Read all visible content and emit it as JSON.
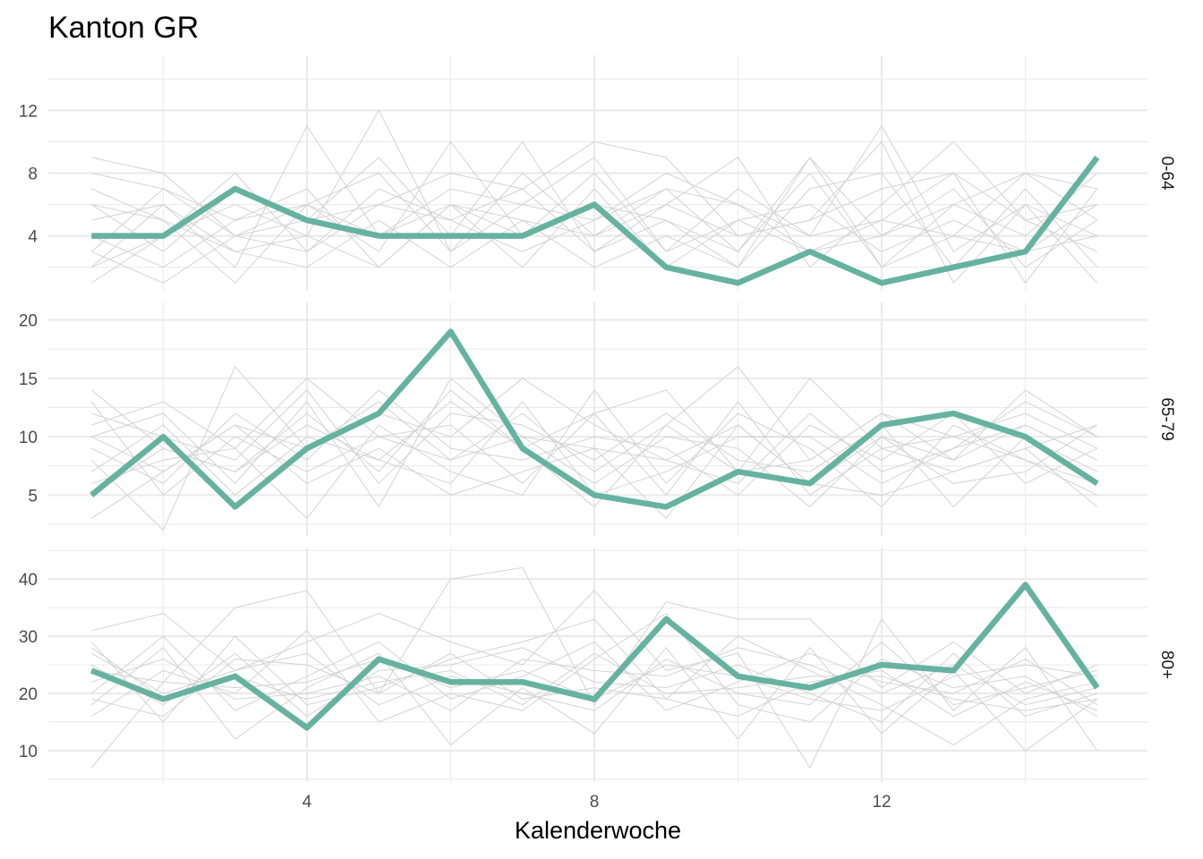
{
  "chart_data": {
    "type": "line",
    "title": "Kanton GR",
    "xlabel": "Kalenderwoche",
    "ylabel": "",
    "x": [
      1,
      2,
      3,
      4,
      5,
      6,
      7,
      8,
      9,
      10,
      11,
      12,
      13,
      14,
      15
    ],
    "xlim": [
      0.4,
      15.7
    ],
    "xticks": [
      4,
      8,
      12
    ],
    "grid": true,
    "legend": "none",
    "colors": {
      "highlight": "#66b2a0",
      "background_lines": "#d3d3d3",
      "grid": "#ebebeb"
    },
    "panels": [
      {
        "label": "0-64",
        "ylim": [
          0.5,
          15.5
        ],
        "yticks": [
          4,
          8,
          12
        ],
        "highlight": [
          4,
          4,
          7,
          5,
          4,
          4,
          4,
          6,
          2,
          1,
          3,
          1,
          2,
          3,
          9
        ],
        "background_series": [
          [
            9,
            8,
            4,
            3,
            6,
            5,
            7,
            10,
            9,
            4,
            5,
            7,
            8,
            5,
            6
          ],
          [
            8,
            7,
            5,
            6,
            4,
            6,
            5,
            4,
            7,
            6,
            3,
            5,
            4,
            8,
            7
          ],
          [
            6,
            3,
            7,
            5,
            9,
            4,
            10,
            3,
            5,
            2,
            9,
            4,
            7,
            2,
            5
          ],
          [
            5,
            6,
            2,
            11,
            4,
            7,
            6,
            9,
            3,
            7,
            4,
            11,
            3,
            6,
            4
          ],
          [
            3,
            7,
            4,
            6,
            3,
            10,
            4,
            6,
            5,
            3,
            8,
            2,
            6,
            4,
            8
          ],
          [
            2,
            4,
            6,
            4,
            12,
            3,
            8,
            4,
            6,
            9,
            2,
            6,
            10,
            5,
            3
          ],
          [
            4,
            2,
            5,
            7,
            2,
            6,
            2,
            7,
            2,
            5,
            6,
            3,
            5,
            3,
            6
          ],
          [
            7,
            5,
            3,
            2,
            5,
            2,
            5,
            2,
            4,
            2,
            7,
            8,
            2,
            7,
            2
          ],
          [
            1,
            4,
            8,
            3,
            7,
            5,
            3,
            5,
            8,
            6,
            4,
            5,
            8,
            1,
            7
          ],
          [
            3,
            1,
            4,
            5,
            6,
            8,
            7,
            3,
            6,
            4,
            5,
            10,
            1,
            6,
            1
          ],
          [
            2,
            6,
            3,
            4,
            2,
            6,
            4,
            8,
            3,
            5,
            3,
            4,
            6,
            8,
            5
          ],
          [
            6,
            5,
            1,
            6,
            8,
            3,
            6,
            5,
            7,
            3,
            9,
            2,
            4,
            3,
            4
          ]
        ]
      },
      {
        "label": "65-79",
        "ylim": [
          1.5,
          21.5
        ],
        "yticks": [
          5,
          10,
          15,
          20
        ],
        "highlight": [
          5,
          10,
          4,
          9,
          12,
          19,
          9,
          5,
          4,
          7,
          6,
          11,
          12,
          10,
          6
        ],
        "background_series": [
          [
            14,
            9,
            7,
            11,
            8,
            13,
            9,
            12,
            14,
            7,
            15,
            9,
            10,
            12,
            9
          ],
          [
            11,
            13,
            9,
            15,
            10,
            8,
            12,
            7,
            11,
            16,
            8,
            12,
            8,
            14,
            10
          ],
          [
            3,
            7,
            11,
            6,
            9,
            5,
            7,
            9,
            3,
            11,
            6,
            5,
            7,
            9,
            4
          ],
          [
            8,
            2,
            16,
            9,
            12,
            10,
            15,
            11,
            8,
            6,
            12,
            7,
            9,
            11,
            8
          ],
          [
            10,
            12,
            6,
            13,
            4,
            15,
            10,
            6,
            10,
            9,
            4,
            10,
            6,
            7,
            11
          ],
          [
            6,
            8,
            9,
            3,
            11,
            7,
            5,
            14,
            6,
            12,
            9,
            4,
            11,
            8,
            6
          ],
          [
            9,
            6,
            12,
            8,
            14,
            9,
            8,
            10,
            9,
            5,
            11,
            8,
            12,
            6,
            9
          ],
          [
            12,
            10,
            8,
            14,
            6,
            12,
            11,
            8,
            12,
            8,
            7,
            11,
            4,
            10,
            7
          ],
          [
            7,
            11,
            5,
            10,
            8,
            6,
            13,
            5,
            7,
            10,
            10,
            6,
            9,
            13,
            10
          ],
          [
            13,
            5,
            10,
            7,
            10,
            11,
            6,
            12,
            5,
            13,
            5,
            9,
            7,
            9,
            11
          ],
          [
            5,
            9,
            7,
            12,
            7,
            14,
            9,
            4,
            11,
            7,
            8,
            12,
            10,
            8,
            5
          ],
          [
            10,
            7,
            11,
            9,
            13,
            8,
            10,
            9,
            8,
            11,
            6,
            10,
            8,
            11,
            8
          ]
        ]
      },
      {
        "label": "80+",
        "ylim": [
          4.5,
          45.5
        ],
        "yticks": [
          10,
          20,
          30,
          40
        ],
        "highlight": [
          24,
          19,
          23,
          14,
          26,
          22,
          22,
          19,
          33,
          23,
          21,
          25,
          24,
          39,
          21
        ],
        "background_series": [
          [
            7,
            22,
            35,
            38,
            20,
            40,
            42,
            18,
            36,
            33,
            33,
            21,
            29,
            20,
            25
          ],
          [
            31,
            34,
            24,
            29,
            34,
            29,
            25,
            38,
            24,
            27,
            7,
            33,
            17,
            28,
            10
          ],
          [
            18,
            28,
            12,
            21,
            27,
            11,
            21,
            13,
            28,
            12,
            28,
            13,
            24,
            10,
            19
          ],
          [
            29,
            15,
            30,
            18,
            21,
            26,
            29,
            33,
            19,
            30,
            24,
            18,
            11,
            19,
            22
          ],
          [
            16,
            24,
            20,
            31,
            15,
            20,
            17,
            26,
            34,
            18,
            15,
            26,
            21,
            23,
            16
          ],
          [
            25,
            18,
            27,
            16,
            24,
            25,
            28,
            22,
            21,
            25,
            20,
            15,
            27,
            16,
            20
          ],
          [
            20,
            30,
            17,
            23,
            29,
            19,
            23,
            29,
            17,
            22,
            27,
            22,
            20,
            26,
            18
          ],
          [
            27,
            20,
            24,
            27,
            18,
            23,
            20,
            17,
            26,
            20,
            18,
            29,
            18,
            21,
            24
          ],
          [
            22,
            26,
            19,
            20,
            23,
            17,
            26,
            24,
            23,
            28,
            25,
            20,
            25,
            18,
            21
          ],
          [
            19,
            16,
            26,
            25,
            20,
            27,
            19,
            21,
            19,
            16,
            22,
            24,
            16,
            22,
            17
          ],
          [
            24,
            22,
            21,
            22,
            26,
            21,
            24,
            19,
            25,
            23,
            19,
            17,
            23,
            25,
            23
          ],
          [
            28,
            19,
            23,
            19,
            22,
            24,
            18,
            27,
            20,
            21,
            23,
            23,
            19,
            17,
            19
          ]
        ]
      }
    ]
  }
}
